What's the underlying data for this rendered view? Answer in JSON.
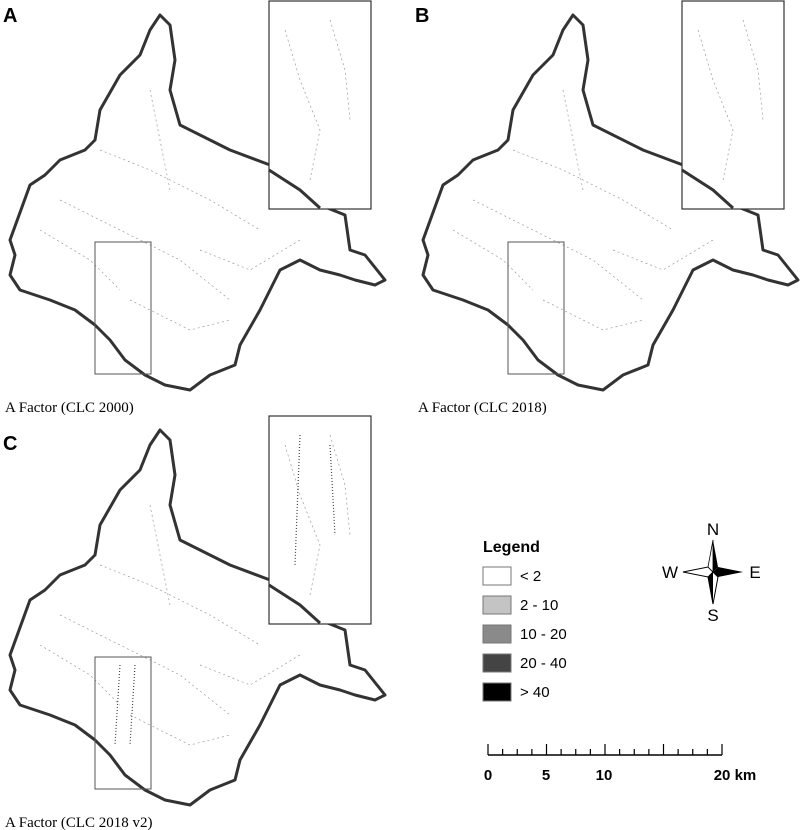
{
  "panels": [
    {
      "letter": "A",
      "caption": "A Factor (CLC 2000)"
    },
    {
      "letter": "B",
      "caption": "A Factor (CLC 2018)"
    },
    {
      "letter": "C",
      "caption": "A Factor (CLC 2018 v2)"
    }
  ],
  "legend": {
    "title": "Legend",
    "items": [
      {
        "label": "< 2",
        "color": "#ffffff"
      },
      {
        "label": "2 - 10",
        "color": "#c4c4c4"
      },
      {
        "label": "10 - 20",
        "color": "#8a8a8a"
      },
      {
        "label": "20 - 40",
        "color": "#444444"
      },
      {
        "label": "> 40",
        "color": "#000000"
      }
    ]
  },
  "compass": {
    "north": "N",
    "south": "S",
    "west": "W",
    "east": "E"
  },
  "scale_bar": {
    "labels": [
      "0",
      "5",
      "10",
      "20 km"
    ]
  }
}
